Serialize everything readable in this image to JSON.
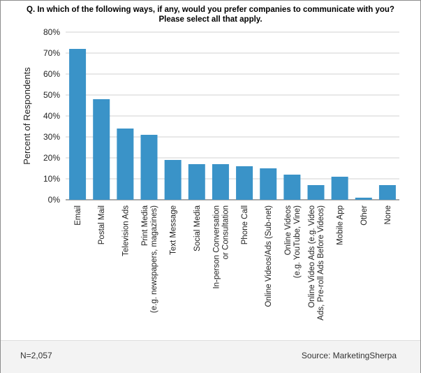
{
  "chart_data": {
    "type": "bar",
    "title_lines": [
      "Q. In which of the following ways, if any, would you prefer companies to communicate with you?",
      "Please select all that apply."
    ],
    "ylabel": "Percent of Respondents",
    "xlabel": "",
    "ylim": [
      0,
      80
    ],
    "yticks": [
      "0%",
      "10%",
      "20%",
      "30%",
      "40%",
      "50%",
      "60%",
      "70%",
      "80%"
    ],
    "grid": true,
    "bar_color": "#3a93c8",
    "categories": [
      [
        "Email"
      ],
      [
        "Postal Mail"
      ],
      [
        "Television Ads"
      ],
      [
        "Print Media",
        "(e.g. newspapers, magazines)"
      ],
      [
        "Text Message"
      ],
      [
        "Social Media"
      ],
      [
        "In-person Conversation",
        "or Consultation"
      ],
      [
        "Phone Call"
      ],
      [
        "Online Videos/Ads (Sub-net)"
      ],
      [
        "Online Videos",
        "(e.g. YouTube, Vine)"
      ],
      [
        "Online Video Ads (e.g. Video",
        "Ads, Pre-roll Ads Before Videos)"
      ],
      [
        "Mobile App"
      ],
      [
        "Other"
      ],
      [
        "None"
      ]
    ],
    "values": [
      72,
      48,
      34,
      31,
      19,
      17,
      17,
      16,
      15,
      12,
      7,
      11,
      1,
      7
    ]
  },
  "footer": {
    "n_label": "N=2,057",
    "source": "Source: MarketingSherpa"
  }
}
